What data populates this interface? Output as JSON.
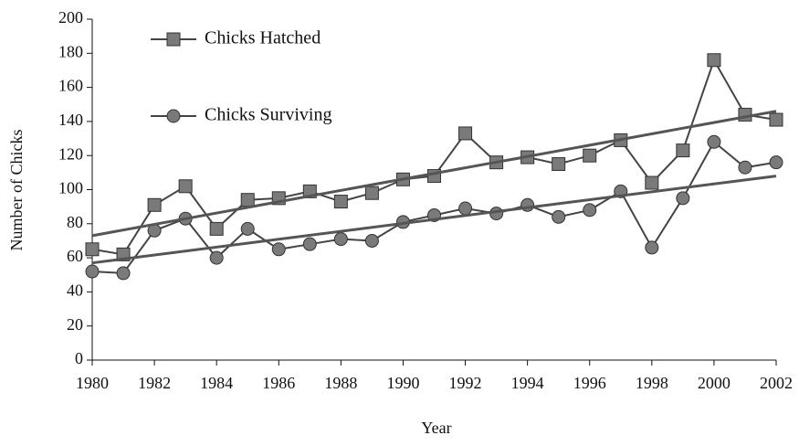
{
  "chart_data": {
    "type": "line",
    "x_label": "Year",
    "y_label": "Number of Chicks",
    "x": [
      1980,
      1981,
      1982,
      1983,
      1984,
      1985,
      1986,
      1987,
      1988,
      1989,
      1990,
      1991,
      1992,
      1993,
      1994,
      1995,
      1996,
      1997,
      1998,
      1999,
      2000,
      2001,
      2002
    ],
    "series": [
      {
        "name": "Chicks Hatched",
        "color": "#7a7a7a",
        "marker": "square",
        "values": [
          65,
          62,
          91,
          102,
          77,
          94,
          95,
          99,
          93,
          98,
          106,
          108,
          133,
          116,
          119,
          115,
          120,
          129,
          104,
          123,
          176,
          144,
          141
        ]
      },
      {
        "name": "Chicks Surviving",
        "color": "#7a7a7a",
        "marker": "circle",
        "values": [
          52,
          51,
          76,
          83,
          60,
          77,
          65,
          68,
          71,
          70,
          81,
          85,
          89,
          86,
          91,
          84,
          88,
          99,
          66,
          95,
          128,
          113,
          116
        ]
      }
    ],
    "trend_lines": [
      {
        "color": "#555555",
        "x": [
          1980,
          2002
        ],
        "values": [
          73,
          146
        ]
      },
      {
        "color": "#555555",
        "x": [
          1980,
          2002
        ],
        "values": [
          57,
          108
        ]
      }
    ],
    "xlim": [
      1980,
      2002
    ],
    "xticks": [
      1980,
      1982,
      1984,
      1986,
      1988,
      1990,
      1992,
      1994,
      1996,
      1998,
      2000,
      2002
    ],
    "ylim": [
      0,
      200
    ],
    "yticks": [
      0,
      20,
      40,
      60,
      80,
      100,
      120,
      140,
      160,
      180,
      200
    ],
    "legend": "upper left",
    "grid": false
  }
}
